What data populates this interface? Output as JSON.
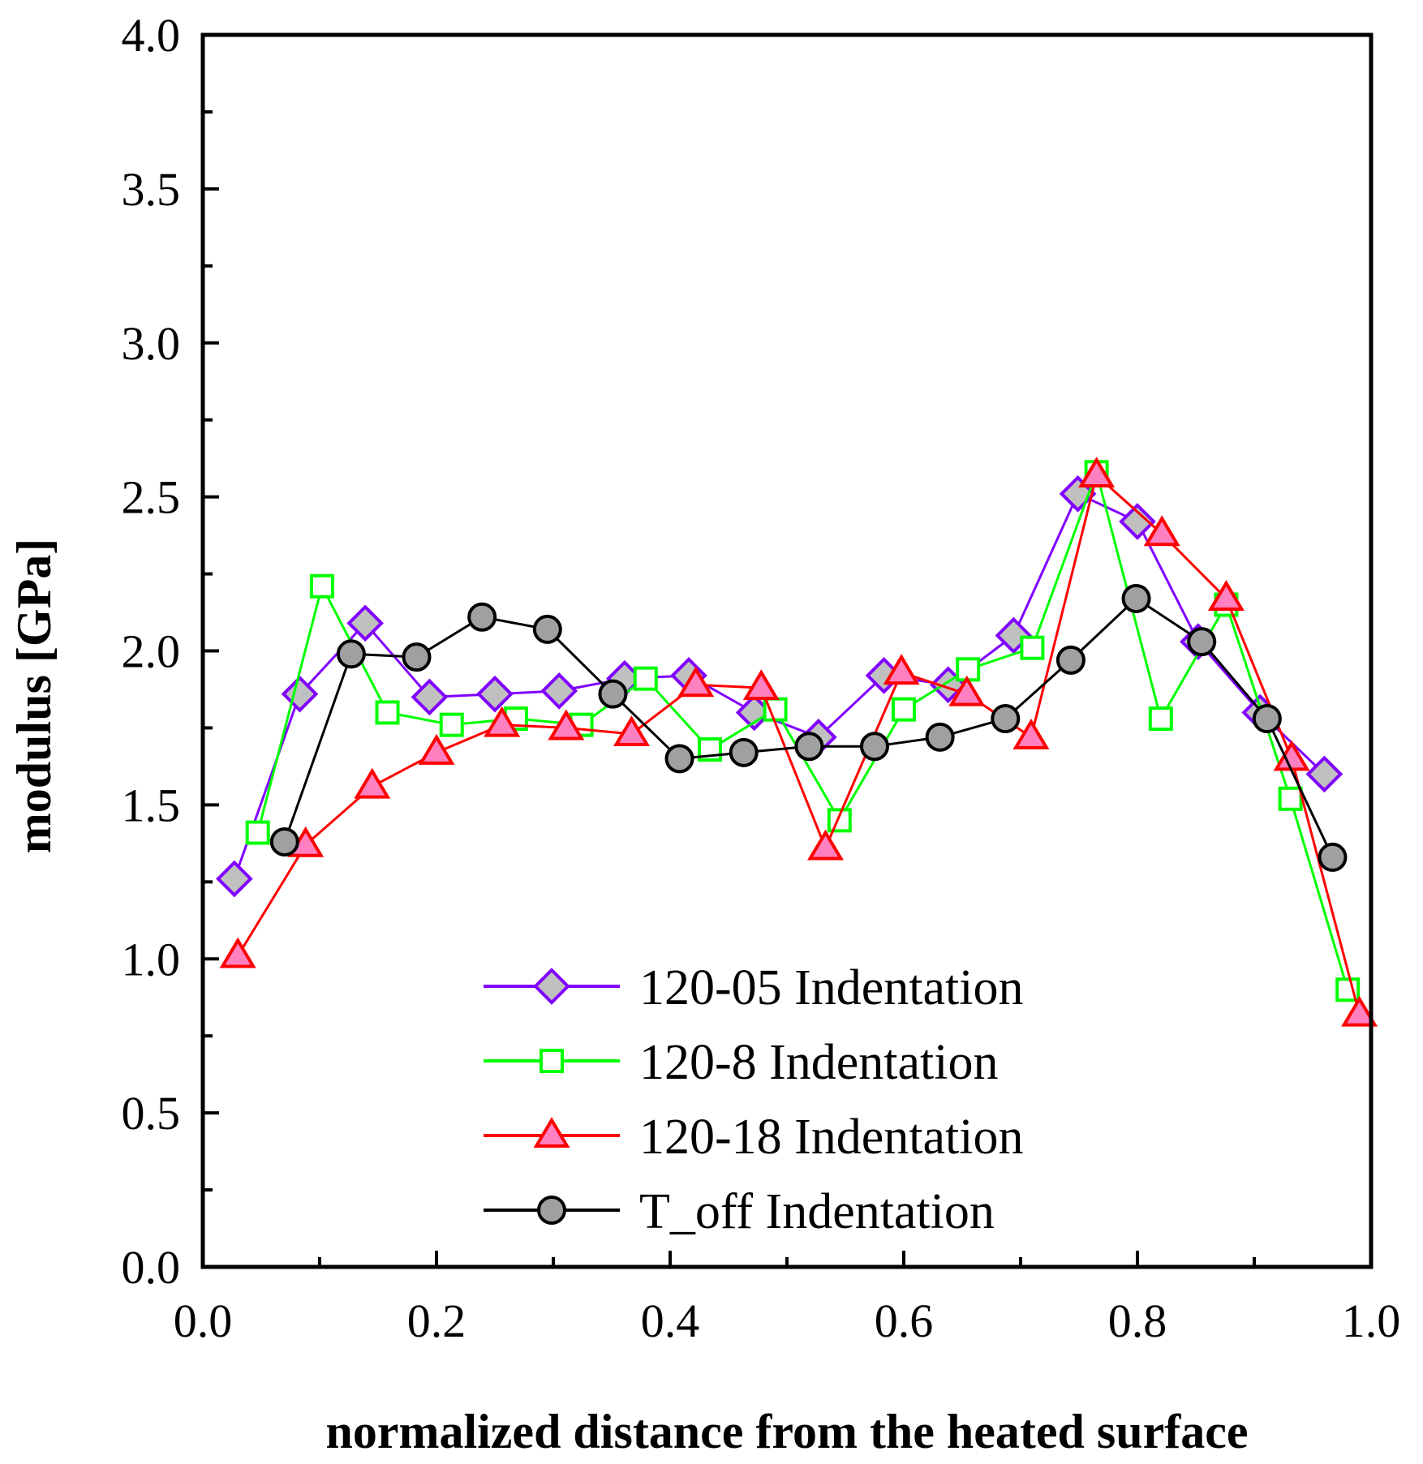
{
  "chart_data": {
    "type": "line",
    "xlabel": "normalized distance from the heated surface",
    "ylabel": "modulus [GPa]",
    "xlim": [
      0.0,
      1.0
    ],
    "ylim": [
      0.0,
      4.0
    ],
    "x_ticks": [
      "0.0",
      "0.2",
      "0.4",
      "0.6",
      "0.8",
      "1.0"
    ],
    "y_ticks": [
      "0.0",
      "0.5",
      "1.0",
      "1.5",
      "2.0",
      "2.5",
      "3.0",
      "3.5",
      "4.0"
    ],
    "legend_position": "bottom-center",
    "grid": false,
    "series": [
      {
        "name": "120-05 Indentation",
        "color": "#8000ff",
        "marker": "diamond",
        "marker_fill": "#c0c0c0",
        "x": [
          0.027,
          0.083,
          0.139,
          0.194,
          0.25,
          0.305,
          0.361,
          0.416,
          0.472,
          0.527,
          0.583,
          0.638,
          0.694,
          0.749,
          0.8,
          0.852,
          0.905,
          0.96
        ],
        "y": [
          1.26,
          1.86,
          2.09,
          1.85,
          1.86,
          1.87,
          1.91,
          1.92,
          1.8,
          1.72,
          1.92,
          1.89,
          2.05,
          2.51,
          2.42,
          2.03,
          1.8,
          1.6
        ]
      },
      {
        "name": "120-8 Indentation",
        "color": "#00ff00",
        "marker": "square",
        "marker_fill": "#ffffff",
        "x": [
          0.047,
          0.102,
          0.158,
          0.213,
          0.268,
          0.324,
          0.379,
          0.434,
          0.49,
          0.545,
          0.6,
          0.655,
          0.71,
          0.765,
          0.82,
          0.876,
          0.931,
          0.98
        ],
        "y": [
          1.41,
          2.21,
          1.8,
          1.76,
          1.78,
          1.76,
          1.91,
          1.68,
          1.81,
          1.45,
          1.81,
          1.94,
          2.01,
          2.58,
          1.78,
          2.15,
          1.52,
          0.9
        ]
      },
      {
        "name": "120-18 Indentation",
        "color": "#ff0000",
        "marker": "triangle",
        "marker_fill": "#ff80c0",
        "x": [
          0.03,
          0.088,
          0.145,
          0.2,
          0.256,
          0.311,
          0.367,
          0.422,
          0.478,
          0.533,
          0.598,
          0.654,
          0.709,
          0.765,
          0.821,
          0.876,
          0.932,
          0.99
        ],
        "y": [
          1.01,
          1.37,
          1.56,
          1.67,
          1.76,
          1.75,
          1.73,
          1.89,
          1.88,
          1.36,
          1.93,
          1.86,
          1.72,
          2.57,
          2.38,
          2.17,
          1.65,
          0.82
        ]
      },
      {
        "name": "T_off Indentation",
        "color": "#000000",
        "marker": "circle",
        "marker_fill": "#a0a0a0",
        "x": [
          0.07,
          0.127,
          0.183,
          0.239,
          0.295,
          0.351,
          0.408,
          0.463,
          0.519,
          0.575,
          0.631,
          0.687,
          0.743,
          0.799,
          0.855,
          0.911,
          0.967
        ],
        "y": [
          1.38,
          1.99,
          1.98,
          2.11,
          2.07,
          1.86,
          1.65,
          1.67,
          1.69,
          1.69,
          1.72,
          1.78,
          1.97,
          2.17,
          2.03,
          1.78,
          1.33
        ]
      }
    ]
  }
}
